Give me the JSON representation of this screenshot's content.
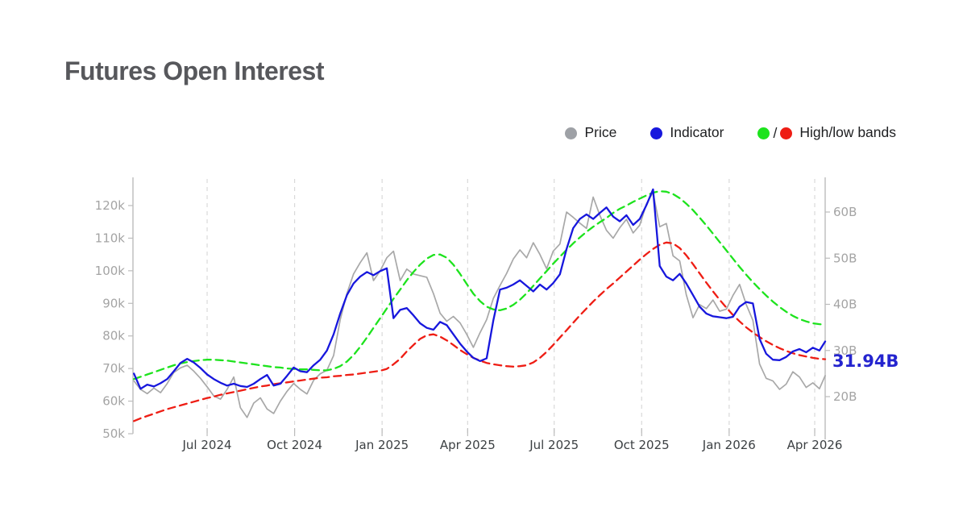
{
  "header": {
    "title": "Futures Open Interest"
  },
  "legend": {
    "items": [
      {
        "label": "Price",
        "color": "#9ea1a6"
      },
      {
        "label": "Indicator",
        "color": "#1717dd"
      },
      {
        "label": "High/low bands",
        "colors": [
          "#1de31d",
          "#ee1d14"
        ],
        "separator": "/"
      }
    ]
  },
  "chart_data": {
    "type": "line",
    "title": "Futures Open Interest",
    "grid": "vertical-dashed",
    "legend_position": "top-right",
    "x_domain": [
      "2024-04-14",
      "2026-04-12"
    ],
    "x_ticks": [
      {
        "date": "2024-07-01",
        "label": "Jul 2024"
      },
      {
        "date": "2024-10-01",
        "label": "Oct 2024"
      },
      {
        "date": "2025-01-01",
        "label": "Jan 2025"
      },
      {
        "date": "2025-04-01",
        "label": "Apr 2025"
      },
      {
        "date": "2025-07-01",
        "label": "Jul 2025"
      },
      {
        "date": "2025-10-01",
        "label": "Oct 2025"
      },
      {
        "date": "2026-01-01",
        "label": "Jan 2026"
      },
      {
        "date": "2026-04-01",
        "label": "Apr 2026"
      }
    ],
    "left_axis": {
      "unit": "k",
      "range": [
        50,
        120
      ],
      "ticks": [
        50,
        60,
        70,
        80,
        90,
        100,
        110,
        120
      ],
      "tick_labels": [
        "50k",
        "60k",
        "70k",
        "80k",
        "90k",
        "100k",
        "110k",
        "120k"
      ]
    },
    "right_axis": {
      "unit": "B",
      "range": [
        20,
        60
      ],
      "ticks": [
        20,
        30,
        40,
        50,
        60
      ],
      "tick_labels": [
        "20B",
        "30B",
        "40B",
        "50B",
        "60B"
      ],
      "current_value": 31.94,
      "current_value_label": "31.94B",
      "current_value_color": "#2424cf"
    },
    "style": {
      "grid_color": "#d9d9d9",
      "axis_color": "#bcbcbc",
      "y_label_color": "#a4a4a4",
      "x_label_color": "#3c4043"
    },
    "dates": [
      "2024-04-15",
      "2024-04-22",
      "2024-04-29",
      "2024-05-06",
      "2024-05-13",
      "2024-05-20",
      "2024-05-27",
      "2024-06-03",
      "2024-06-10",
      "2024-06-17",
      "2024-06-24",
      "2024-07-01",
      "2024-07-08",
      "2024-07-15",
      "2024-07-22",
      "2024-07-29",
      "2024-08-05",
      "2024-08-12",
      "2024-08-19",
      "2024-08-26",
      "2024-09-02",
      "2024-09-09",
      "2024-09-16",
      "2024-09-23",
      "2024-09-30",
      "2024-10-07",
      "2024-10-14",
      "2024-10-21",
      "2024-10-28",
      "2024-11-04",
      "2024-11-11",
      "2024-11-18",
      "2024-11-25",
      "2024-12-02",
      "2024-12-09",
      "2024-12-16",
      "2024-12-23",
      "2024-12-30",
      "2025-01-06",
      "2025-01-13",
      "2025-01-20",
      "2025-01-27",
      "2025-02-03",
      "2025-02-10",
      "2025-02-17",
      "2025-02-24",
      "2025-03-03",
      "2025-03-10",
      "2025-03-17",
      "2025-03-24",
      "2025-03-31",
      "2025-04-07",
      "2025-04-14",
      "2025-04-21",
      "2025-04-28",
      "2025-05-05",
      "2025-05-12",
      "2025-05-19",
      "2025-05-26",
      "2025-06-02",
      "2025-06-09",
      "2025-06-16",
      "2025-06-23",
      "2025-06-30",
      "2025-07-07",
      "2025-07-14",
      "2025-07-21",
      "2025-07-28",
      "2025-08-04",
      "2025-08-11",
      "2025-08-18",
      "2025-08-25",
      "2025-09-01",
      "2025-09-08",
      "2025-09-15",
      "2025-09-22",
      "2025-09-29",
      "2025-10-06",
      "2025-10-13",
      "2025-10-20",
      "2025-10-27",
      "2025-11-03",
      "2025-11-10",
      "2025-11-17",
      "2025-11-24",
      "2025-12-01",
      "2025-12-08",
      "2025-12-15",
      "2025-12-22",
      "2025-12-29",
      "2026-01-05",
      "2026-01-12",
      "2026-01-19",
      "2026-01-26",
      "2026-02-02",
      "2026-02-09",
      "2026-02-16",
      "2026-02-23",
      "2026-03-02",
      "2026-03-09",
      "2026-03-16",
      "2026-03-23",
      "2026-03-30",
      "2026-04-06",
      "2026-04-12"
    ],
    "series": [
      {
        "name": "Price",
        "axis": "left",
        "unit": "k",
        "color": "#a8a8a8",
        "line_style": "solid",
        "values": [
          66.2,
          63.6,
          62.3,
          64.0,
          62.6,
          65.4,
          68.8,
          70.2,
          71.0,
          69.2,
          67.0,
          64.4,
          61.6,
          60.6,
          63.6,
          67.4,
          58.0,
          55.0,
          59.4,
          61.0,
          57.6,
          56.2,
          60.0,
          63.0,
          65.4,
          63.6,
          62.2,
          66.4,
          68.4,
          69.5,
          74.0,
          85.0,
          93.0,
          99.0,
          102.5,
          105.5,
          97.0,
          100.0,
          104.0,
          106.0,
          97.0,
          100.5,
          99.0,
          98.5,
          98.0,
          93.0,
          87.0,
          84.5,
          86.0,
          84.0,
          80.5,
          76.5,
          81.0,
          85.0,
          91.5,
          95.5,
          99.2,
          103.6,
          106.4,
          104.0,
          108.6,
          105.0,
          100.6,
          106.0,
          108.2,
          118.0,
          116.4,
          114.6,
          113.0,
          122.6,
          117.0,
          112.4,
          110.0,
          113.2,
          115.8,
          111.6,
          114.0,
          120.5,
          124.0,
          113.5,
          114.5,
          104.6,
          103.0,
          92.6,
          85.6,
          89.6,
          88.4,
          91.0,
          87.6,
          88.2,
          92.4,
          95.8,
          89.6,
          84.8,
          71.4,
          67.0,
          66.2,
          63.6,
          65.2,
          69.0,
          67.4,
          64.2,
          65.6,
          63.8,
          67.8
        ]
      },
      {
        "name": "High band",
        "axis": "right",
        "unit": "B",
        "color": "#1de31d",
        "line_style": "dashed",
        "values": [
          23.8,
          24.3,
          24.8,
          25.3,
          25.8,
          26.3,
          26.8,
          27.2,
          27.5,
          27.7,
          27.9,
          28.0,
          28.0,
          27.9,
          27.8,
          27.6,
          27.4,
          27.2,
          27.0,
          26.8,
          26.6,
          26.4,
          26.3,
          26.1,
          26.0,
          25.9,
          25.9,
          25.8,
          25.7,
          25.7,
          26.0,
          26.6,
          27.6,
          29.0,
          30.8,
          32.8,
          34.9,
          37.0,
          39.1,
          41.2,
          43.2,
          45.2,
          47.0,
          48.6,
          49.9,
          50.7,
          50.8,
          50.1,
          48.6,
          46.6,
          44.4,
          42.3,
          40.7,
          39.5,
          38.9,
          38.7,
          39.1,
          39.9,
          41.0,
          42.4,
          44.0,
          45.6,
          47.2,
          48.8,
          50.3,
          51.8,
          53.2,
          54.5,
          55.7,
          56.8,
          57.8,
          58.7,
          59.8,
          60.7,
          61.4,
          62.2,
          62.9,
          63.6,
          64.2,
          64.5,
          64.4,
          63.9,
          63.0,
          61.8,
          60.4,
          58.8,
          57.1,
          55.3,
          53.5,
          51.7,
          49.9,
          48.1,
          46.4,
          44.8,
          43.3,
          41.9,
          40.6,
          39.4,
          38.4,
          37.5,
          36.8,
          36.3,
          35.9,
          35.7,
          35.6
        ]
      },
      {
        "name": "Low band",
        "axis": "right",
        "unit": "B",
        "color": "#ee1d14",
        "line_style": "dashed",
        "values": [
          14.7,
          15.3,
          15.8,
          16.3,
          16.8,
          17.3,
          17.7,
          18.1,
          18.5,
          18.9,
          19.3,
          19.7,
          20.0,
          20.4,
          20.7,
          21.0,
          21.3,
          21.6,
          21.9,
          22.2,
          22.4,
          22.7,
          22.9,
          23.1,
          23.3,
          23.5,
          23.7,
          23.9,
          24.1,
          24.2,
          24.4,
          24.5,
          24.7,
          24.8,
          25.0,
          25.2,
          25.4,
          25.6,
          26.0,
          27.0,
          28.2,
          29.8,
          31.2,
          32.5,
          33.3,
          33.5,
          33.0,
          32.2,
          31.2,
          30.1,
          29.2,
          28.4,
          27.8,
          27.3,
          27.0,
          26.8,
          26.6,
          26.5,
          26.6,
          26.8,
          27.4,
          28.4,
          29.7,
          31.2,
          32.8,
          34.4,
          36.0,
          37.6,
          39.1,
          40.6,
          42.0,
          43.3,
          44.5,
          45.8,
          47.1,
          48.4,
          49.7,
          50.9,
          52.0,
          52.9,
          53.4,
          53.2,
          52.2,
          50.6,
          48.7,
          46.7,
          44.7,
          42.8,
          41.0,
          39.3,
          37.7,
          36.3,
          35.0,
          33.9,
          32.9,
          32.0,
          31.2,
          30.5,
          29.9,
          29.4,
          29.0,
          28.7,
          28.4,
          28.2,
          28.1
        ]
      },
      {
        "name": "Indicator",
        "axis": "right",
        "unit": "B",
        "color": "#1717dd",
        "line_style": "solid",
        "values": [
          25.0,
          21.7,
          22.6,
          22.2,
          22.9,
          23.8,
          25.5,
          27.3,
          28.2,
          27.4,
          26.2,
          24.8,
          23.8,
          23.0,
          22.4,
          22.8,
          22.3,
          22.1,
          22.8,
          23.8,
          24.7,
          22.4,
          22.8,
          24.5,
          26.3,
          25.5,
          25.3,
          26.8,
          28.0,
          30.0,
          33.5,
          38.0,
          42.0,
          44.5,
          46.0,
          47.0,
          46.3,
          47.2,
          47.8,
          37.0,
          38.8,
          39.2,
          37.6,
          35.9,
          34.9,
          34.5,
          36.2,
          35.5,
          33.5,
          31.5,
          29.8,
          28.4,
          27.7,
          28.3,
          36.5,
          43.2,
          43.6,
          44.3,
          45.2,
          44.0,
          42.8,
          44.3,
          43.2,
          44.6,
          46.5,
          52.0,
          56.5,
          58.5,
          59.5,
          58.5,
          59.8,
          61.0,
          59.0,
          58.0,
          59.3,
          57.2,
          58.5,
          61.5,
          64.9,
          48.3,
          46.0,
          45.2,
          46.6,
          44.5,
          42.0,
          39.5,
          38.0,
          37.4,
          37.2,
          37.0,
          37.3,
          39.5,
          40.5,
          40.2,
          32.5,
          29.3,
          28.0,
          27.9,
          28.6,
          29.8,
          30.3,
          29.6,
          30.6,
          30.0,
          31.94
        ]
      }
    ]
  }
}
